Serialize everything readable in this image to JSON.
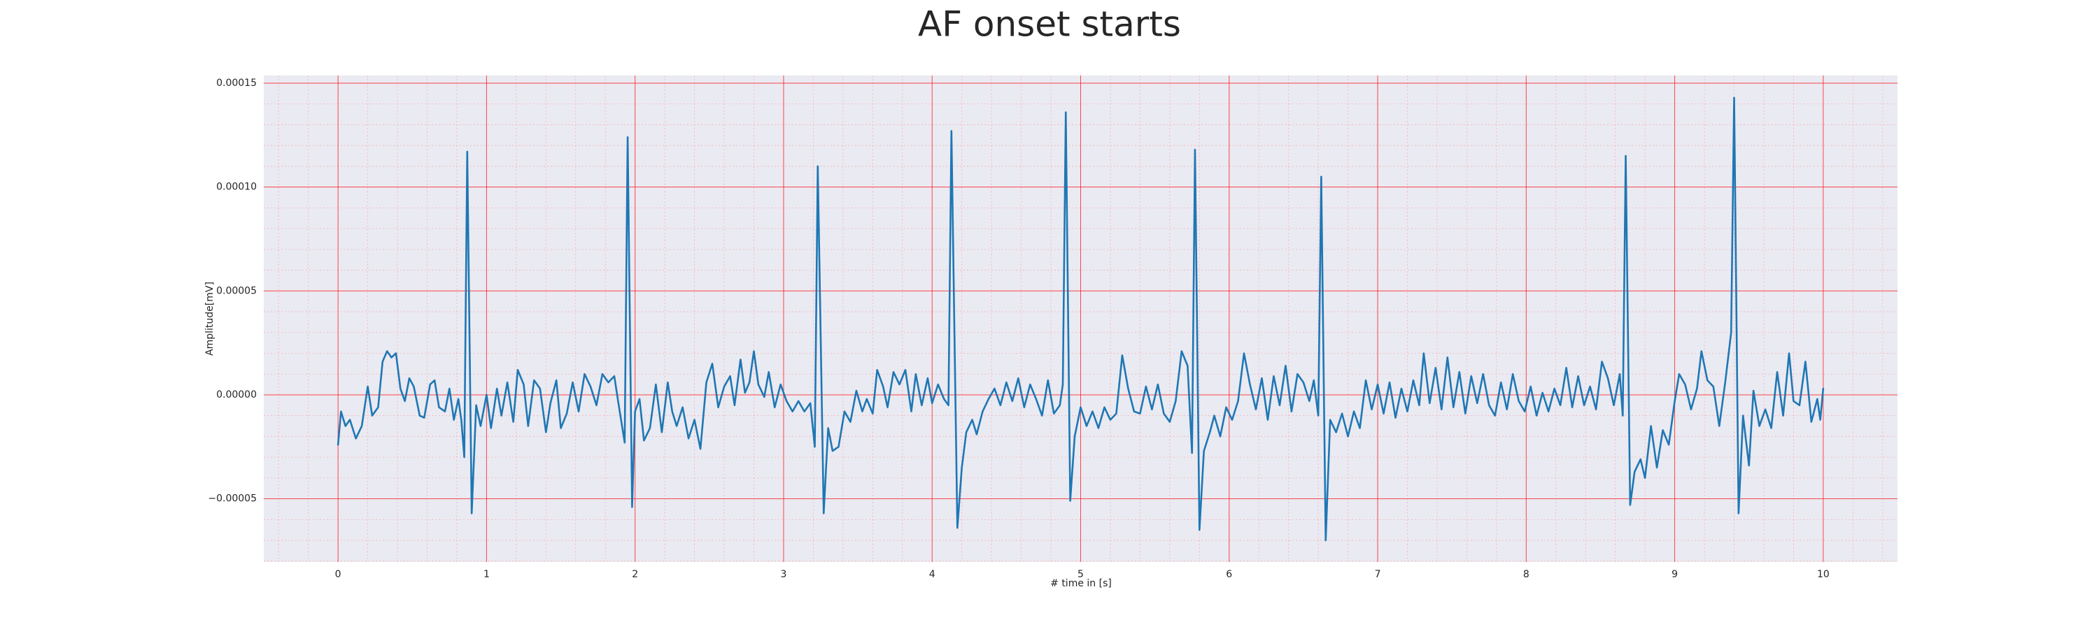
{
  "chart_data": {
    "type": "line",
    "title": "AF onset starts",
    "x_label": "# time in [s]",
    "y_label": "Amplitude[mV]",
    "color": "#1f77b4",
    "grid": true,
    "grid_color": "#ff0000",
    "minor_grid": true,
    "minor_grid_color": "#ff8c8c",
    "background": "#eaeaf2",
    "xlim": [
      -0.5,
      10.5
    ],
    "ylim": [
      -8.04e-05,
      0.0001537
    ],
    "xticks": [
      0,
      1,
      2,
      3,
      4,
      5,
      6,
      7,
      8,
      9,
      10
    ],
    "yticks": [
      {
        "value": -5e-05,
        "label": "−0.00005"
      },
      {
        "value": 0,
        "label": "0.00000"
      },
      5e-05,
      {
        "value": 0.0001,
        "label": "0.00010"
      },
      0.00015
    ],
    "x": [
      0,
      0.02,
      0.05,
      0.08,
      0.12,
      0.16,
      0.2,
      0.23,
      0.27,
      0.3,
      0.33,
      0.36,
      0.39,
      0.42,
      0.45,
      0.48,
      0.51,
      0.55,
      0.58,
      0.62,
      0.65,
      0.68,
      0.72,
      0.75,
      0.78,
      0.81,
      0.83,
      0.85,
      0.87,
      0.9,
      0.93,
      0.96,
      1.0,
      1.03,
      1.07,
      1.1,
      1.14,
      1.18,
      1.21,
      1.25,
      1.28,
      1.32,
      1.36,
      1.4,
      1.43,
      1.47,
      1.5,
      1.54,
      1.58,
      1.62,
      1.66,
      1.7,
      1.74,
      1.78,
      1.82,
      1.86,
      1.89,
      1.93,
      1.95,
      1.98,
      2.0,
      2.03,
      2.06,
      2.1,
      2.14,
      2.18,
      2.22,
      2.25,
      2.28,
      2.32,
      2.36,
      2.4,
      2.44,
      2.48,
      2.52,
      2.56,
      2.6,
      2.64,
      2.67,
      2.71,
      2.74,
      2.77,
      2.8,
      2.83,
      2.87,
      2.9,
      2.94,
      2.98,
      3.02,
      3.06,
      3.1,
      3.14,
      3.18,
      3.21,
      3.23,
      3.27,
      3.3,
      3.33,
      3.37,
      3.41,
      3.45,
      3.49,
      3.53,
      3.56,
      3.6,
      3.63,
      3.67,
      3.7,
      3.74,
      3.78,
      3.82,
      3.86,
      3.89,
      3.93,
      3.97,
      4.0,
      4.04,
      4.08,
      4.11,
      4.13,
      4.17,
      4.2,
      4.23,
      4.27,
      4.3,
      4.34,
      4.38,
      4.42,
      4.46,
      4.5,
      4.54,
      4.58,
      4.62,
      4.66,
      4.7,
      4.74,
      4.78,
      4.82,
      4.86,
      4.88,
      4.9,
      4.93,
      4.96,
      5.0,
      5.04,
      5.08,
      5.12,
      5.16,
      5.2,
      5.24,
      5.28,
      5.32,
      5.36,
      5.4,
      5.44,
      5.48,
      5.52,
      5.56,
      5.6,
      5.64,
      5.68,
      5.72,
      5.75,
      5.77,
      5.8,
      5.83,
      5.87,
      5.9,
      5.94,
      5.98,
      6.02,
      6.06,
      6.1,
      6.14,
      6.18,
      6.22,
      6.26,
      6.3,
      6.34,
      6.38,
      6.42,
      6.46,
      6.5,
      6.54,
      6.57,
      6.6,
      6.62,
      6.65,
      6.68,
      6.72,
      6.76,
      6.8,
      6.84,
      6.88,
      6.92,
      6.96,
      7.0,
      7.04,
      7.08,
      7.12,
      7.16,
      7.2,
      7.24,
      7.28,
      7.31,
      7.35,
      7.39,
      7.43,
      7.47,
      7.51,
      7.55,
      7.59,
      7.63,
      7.67,
      7.71,
      7.75,
      7.79,
      7.83,
      7.87,
      7.91,
      7.95,
      7.99,
      8.03,
      8.07,
      8.11,
      8.15,
      8.19,
      8.23,
      8.27,
      8.31,
      8.35,
      8.39,
      8.43,
      8.47,
      8.51,
      8.55,
      8.59,
      8.63,
      8.65,
      8.67,
      8.7,
      8.73,
      8.77,
      8.8,
      8.84,
      8.88,
      8.92,
      8.96,
      9.0,
      9.03,
      9.07,
      9.11,
      9.15,
      9.18,
      9.22,
      9.26,
      9.3,
      9.34,
      9.38,
      9.4,
      9.43,
      9.46,
      9.5,
      9.53,
      9.57,
      9.61,
      9.65,
      9.69,
      9.73,
      9.77,
      9.8,
      9.84,
      9.88,
      9.92,
      9.96,
      9.98,
      10
    ],
    "values": [
      -2.4e-05,
      -8e-06,
      -1.5e-05,
      -1.2e-05,
      -2.1e-05,
      -1.5e-05,
      4e-06,
      -1e-05,
      -6e-06,
      1.6e-05,
      2.1e-05,
      1.8e-05,
      2e-05,
      3e-06,
      -3e-06,
      8e-06,
      4e-06,
      -1e-05,
      -1.1e-05,
      5e-06,
      7e-06,
      -6e-06,
      -8e-06,
      3e-06,
      -1.2e-05,
      -2e-06,
      -1.2e-05,
      -3e-05,
      0.000117,
      -5.7e-05,
      -5e-06,
      -1.5e-05,
      0,
      -1.6e-05,
      3e-06,
      -1e-05,
      6e-06,
      -1.3e-05,
      1.2e-05,
      5e-06,
      -1.5e-05,
      7e-06,
      3e-06,
      -1.8e-05,
      -4e-06,
      7e-06,
      -1.6e-05,
      -9e-06,
      6e-06,
      -8e-06,
      1e-05,
      4e-06,
      -5e-06,
      1e-05,
      6e-06,
      9e-06,
      -5e-06,
      -2.3e-05,
      0.000124,
      -5.4e-05,
      -8e-06,
      -2e-06,
      -2.2e-05,
      -1.6e-05,
      5e-06,
      -1.8e-05,
      6e-06,
      -8e-06,
      -1.5e-05,
      -6e-06,
      -2.1e-05,
      -1.2e-05,
      -2.6e-05,
      6e-06,
      1.5e-05,
      -6e-06,
      4e-06,
      9e-06,
      -5e-06,
      1.7e-05,
      1e-06,
      6e-06,
      2.1e-05,
      5e-06,
      -1e-06,
      1.1e-05,
      -6e-06,
      5e-06,
      -3e-06,
      -8e-06,
      -3e-06,
      -8e-06,
      -4e-06,
      -2.5e-05,
      0.00011,
      -5.7e-05,
      -1.6e-05,
      -2.7e-05,
      -2.5e-05,
      -8e-06,
      -1.3e-05,
      2e-06,
      -8e-06,
      -2e-06,
      -9e-06,
      1.2e-05,
      4e-06,
      -6e-06,
      1.1e-05,
      5e-06,
      1.2e-05,
      -8e-06,
      1e-05,
      -5e-06,
      8e-06,
      -4e-06,
      5e-06,
      -2e-06,
      -5e-06,
      0.000127,
      -6.4e-05,
      -3.5e-05,
      -1.8e-05,
      -1.2e-05,
      -1.9e-05,
      -8e-06,
      -2e-06,
      3e-06,
      -5e-06,
      6e-06,
      -3e-06,
      8e-06,
      -6e-06,
      5e-06,
      -2e-06,
      -1e-05,
      7e-06,
      -9e-06,
      -5e-06,
      5e-06,
      0.000136,
      -5.1e-05,
      -2e-05,
      -6e-06,
      -1.5e-05,
      -8e-06,
      -1.6e-05,
      -6e-06,
      -1.2e-05,
      -9e-06,
      1.9e-05,
      3e-06,
      -8e-06,
      -9e-06,
      4e-06,
      -7e-06,
      5e-06,
      -9e-06,
      -1.3e-05,
      -3e-06,
      2.1e-05,
      1.4e-05,
      -2.8e-05,
      0.000118,
      -6.5e-05,
      -2.7e-05,
      -1.8e-05,
      -1e-05,
      -2e-05,
      -6e-06,
      -1.2e-05,
      -3e-06,
      2e-05,
      5e-06,
      -7e-06,
      8e-06,
      -1.2e-05,
      9e-06,
      -5e-06,
      1.4e-05,
      -8e-06,
      1e-05,
      6e-06,
      -3e-06,
      7e-06,
      -1e-05,
      0.000105,
      -7e-05,
      -1.2e-05,
      -1.8e-05,
      -9e-06,
      -2e-05,
      -8e-06,
      -1.6e-05,
      7e-06,
      -7e-06,
      5e-06,
      -9e-06,
      6e-06,
      -1.1e-05,
      3e-06,
      -8e-06,
      7e-06,
      -5e-06,
      2e-05,
      -4e-06,
      1.3e-05,
      -7e-06,
      1.8e-05,
      -6e-06,
      1.1e-05,
      -9e-06,
      9e-06,
      -4e-06,
      1e-05,
      -5e-06,
      -1e-05,
      6e-06,
      -7e-06,
      1e-05,
      -3e-06,
      -8e-06,
      4e-06,
      -1e-05,
      1e-06,
      -8e-06,
      3e-06,
      -5e-06,
      1.3e-05,
      -6e-06,
      9e-06,
      -5e-06,
      4e-06,
      -7e-06,
      1.6e-05,
      8e-06,
      -5e-06,
      1e-05,
      -1e-05,
      0.000115,
      -5.3e-05,
      -3.7e-05,
      -3.1e-05,
      -4e-05,
      -1.5e-05,
      -3.5e-05,
      -1.7e-05,
      -2.4e-05,
      -3e-06,
      1e-05,
      5e-06,
      -7e-06,
      3e-06,
      2.1e-05,
      7e-06,
      4e-06,
      -1.5e-05,
      6e-06,
      3e-05,
      0.000143,
      -5.7e-05,
      -1e-05,
      -3.4e-05,
      2e-06,
      -1.5e-05,
      -7e-06,
      -1.6e-05,
      1.1e-05,
      -1e-05,
      2e-05,
      -3e-06,
      -5e-06,
      1.6e-05,
      -1.3e-05,
      -2e-06,
      -1.2e-05,
      3e-06
    ]
  }
}
